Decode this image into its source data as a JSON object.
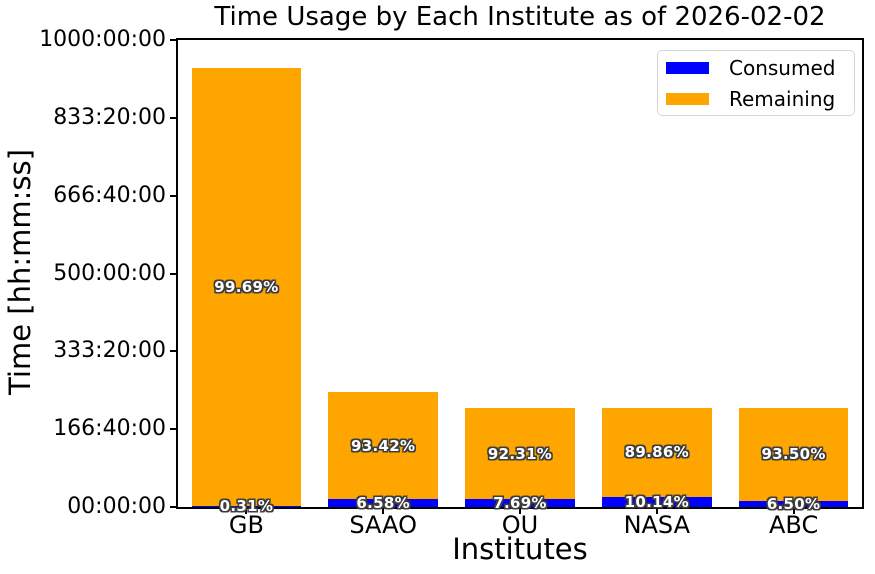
{
  "colors": {
    "background": "#ffffff",
    "text": "#000000",
    "axis": "#000000",
    "pct_label_text": "#ffffff",
    "pct_label_outline": "#3d3d3d",
    "legend_border": "#d5d5d5"
  },
  "chart_data": {
    "type": "bar",
    "stacked": true,
    "title": "Time Usage by Each Institute as of 2026-02-02",
    "xlabel": "Institutes",
    "ylabel": "Time [hh:mm:ss]",
    "categories": [
      "GB",
      "SAAO",
      "OU",
      "NASA",
      "ABC"
    ],
    "ylim_hours": [
      0,
      1000
    ],
    "yticks": [
      {
        "hours": 0,
        "label": "00:00:00"
      },
      {
        "hours": 166.6667,
        "label": "166:40:00"
      },
      {
        "hours": 333.3333,
        "label": "333:20:00"
      },
      {
        "hours": 500,
        "label": "500:00:00"
      },
      {
        "hours": 666.6667,
        "label": "666:40:00"
      },
      {
        "hours": 833.3333,
        "label": "833:20:00"
      },
      {
        "hours": 1000,
        "label": "1000:00:00"
      }
    ],
    "series": [
      {
        "name": "Consumed",
        "color": "#0000FF",
        "hours": [
          2.9,
          16.2,
          16.3,
          21.5,
          13.8
        ],
        "pct_labels": [
          "0.31%",
          "6.58%",
          "7.69%",
          "10.14%",
          "6.50%"
        ]
      },
      {
        "name": "Remaining",
        "color": "#FFA500",
        "hours": [
          937.1,
          229.8,
          195.7,
          190.5,
          198.2
        ],
        "pct_labels": [
          "99.69%",
          "93.42%",
          "92.31%",
          "89.86%",
          "93.50%"
        ]
      }
    ],
    "approx_total_hours": [
      940,
      246,
      212,
      212,
      212
    ],
    "legend": {
      "position": "upper right",
      "items": [
        "Consumed",
        "Remaining"
      ]
    },
    "grid": false
  }
}
